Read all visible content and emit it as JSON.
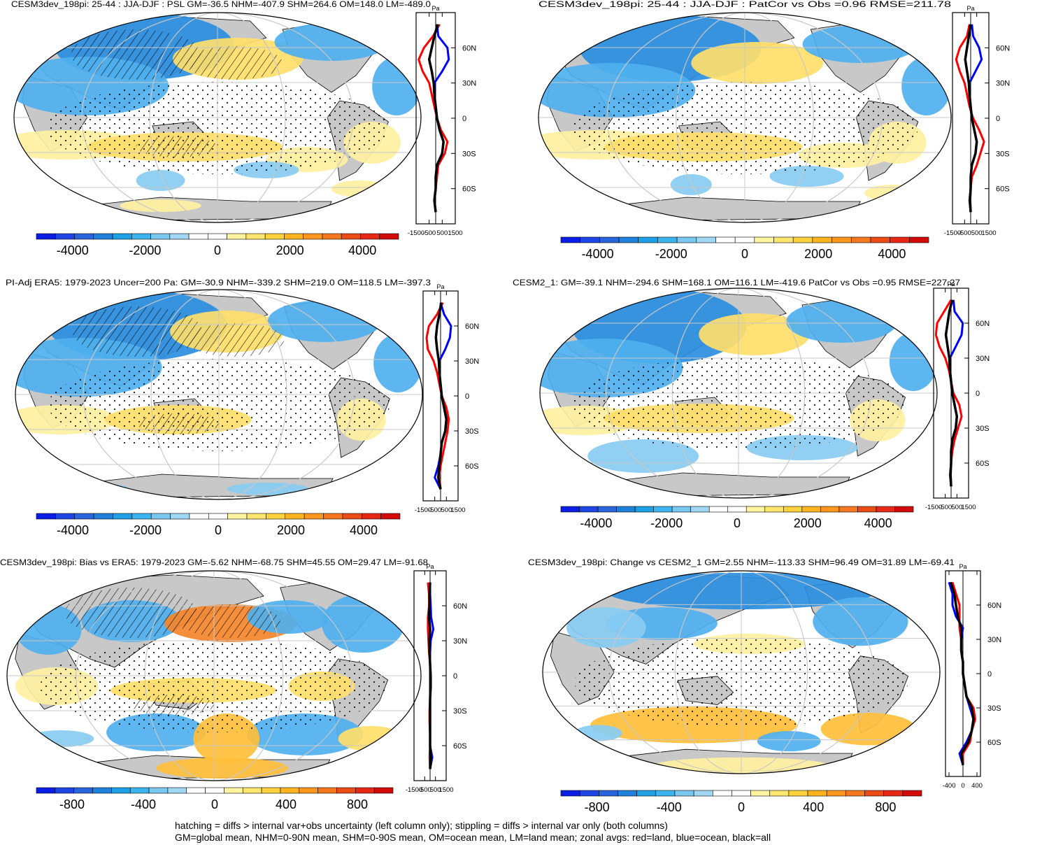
{
  "panels": [
    {
      "title": "CESM3dev_198pi: 25-44 : JJA-DJF : PSL GM=-36.5 NHM=-407.9 SHM=264.6 OM=148.0 LM=-489.0",
      "colorbar_ticks": [
        "-4000",
        "-2000",
        "0",
        "2000",
        "4000"
      ],
      "zonal_units": "Pa",
      "zonal_xticks": [
        "-1500",
        "-500",
        "500",
        "1500"
      ],
      "lat_ticks": [
        "60N",
        "30N",
        "0",
        "30S",
        "60S"
      ],
      "hatching": true
    },
    {
      "title": "CESM3dev_198pi: 25-44 : JJA-DJF : PatCor vs Obs =0.96 RMSE=211.78",
      "colorbar_ticks": [
        "-4000",
        "-2000",
        "0",
        "2000",
        "4000"
      ],
      "zonal_units": "Pa",
      "zonal_xticks": [
        "-1500",
        "-500",
        "500",
        "1500"
      ],
      "lat_ticks": [
        "60N",
        "30N",
        "0",
        "30S",
        "60S"
      ],
      "hatching": false
    },
    {
      "title": "PI-Adj ERA5: 1979-2023 Uncer=200 Pa: GM=-30.9 NHM=-339.2 SHM=219.0 OM=118.5 LM=-397.3",
      "colorbar_ticks": [
        "-4000",
        "-2000",
        "0",
        "2000",
        "4000"
      ],
      "zonal_units": "Pa",
      "zonal_xticks": [
        "-1500",
        "-500",
        "500",
        "1500"
      ],
      "lat_ticks": [
        "60N",
        "30N",
        "0",
        "30S",
        "60S"
      ],
      "hatching": true
    },
    {
      "title": "CESM2_1: GM=-39.1 NHM=-294.6 SHM=168.1 OM=116.1 LM=-419.6 PatCor vs Obs =0.95 RMSE=227.27",
      "colorbar_ticks": [
        "-4000",
        "-2000",
        "0",
        "2000",
        "4000"
      ],
      "zonal_units": "Pa",
      "zonal_xticks": [
        "-1500",
        "-500",
        "500",
        "1500"
      ],
      "lat_ticks": [
        "60N",
        "30N",
        "0",
        "30S",
        "60S"
      ],
      "hatching": false
    },
    {
      "title": "CESM3dev_198pi: Bias vs ERA5: 1979-2023 GM=-5.62 NHM=-68.75 SHM=45.55 OM=29.47 LM=-91.68",
      "colorbar_ticks": [
        "-800",
        "-400",
        "0",
        "400",
        "800"
      ],
      "zonal_units": "Pa",
      "zonal_xticks": [
        "-1500",
        "-500",
        "500",
        "1500"
      ],
      "lat_ticks": [
        "60N",
        "30N",
        "0",
        "30S",
        "60S"
      ],
      "hatching": true
    },
    {
      "title": "CESM3dev_198pi: Change vs CESM2_1 GM=2.55 NHM=-113.33 SHM=96.49 OM=31.89 LM=-69.41",
      "colorbar_ticks": [
        "-800",
        "-400",
        "0",
        "400",
        "800"
      ],
      "zonal_units": "Pa",
      "zonal_xticks": [
        "-400",
        "0",
        "400"
      ],
      "lat_ticks": [
        "60N",
        "30N",
        "0",
        "30S",
        "60S"
      ],
      "hatching": false
    }
  ],
  "footer": {
    "line1": "hatching = diffs > internal var+obs uncertainty (left column only); stippling = diffs > internal var only (both columns)",
    "line2": "GM=global mean, NHM=0-90N mean, SHM=0-90S mean, OM=ocean mean, LM=land mean; zonal avgs: red=land, blue=ocean, black=all"
  },
  "colors": {
    "ocean_white": "#ffffff",
    "land_gray": "#c8c8c8",
    "negative_palette": [
      "#0a1ee6",
      "#1e46e6",
      "#2864dc",
      "#1e82dc",
      "#1ea0e6",
      "#3cb4f0",
      "#78c8f0",
      "#a0d8f4"
    ],
    "positive_palette": [
      "#fff5a0",
      "#ffe66e",
      "#ffd23c",
      "#ffb41e",
      "#ff961e",
      "#f5781e",
      "#eb4b14",
      "#e62814",
      "#d20a0a"
    ],
    "zonal_land": "#ff0000",
    "zonal_ocean": "#0000ff",
    "zonal_all": "#000000"
  },
  "chart_data": [
    {
      "type": "heatmap",
      "title": "CESM3dev_198pi: 25-44 : JJA-DJF : PSL GM=-36.5 NHM=-407.9 SHM=264.6 OM=148.0 LM=-489.0",
      "colorbar_range": [
        -5000,
        5000
      ],
      "zonal_mean": {
        "lat": [
          80,
          70,
          60,
          50,
          40,
          30,
          20,
          10,
          0,
          -10,
          -20,
          -30,
          -40,
          -50,
          -60,
          -70,
          -80
        ],
        "land": [
          300,
          -200,
          -900,
          -1300,
          -1000,
          -500,
          -300,
          -100,
          100,
          400,
          900,
          700,
          200,
          100,
          0,
          -100,
          0
        ],
        "ocean": [
          100,
          200,
          900,
          1000,
          500,
          -100,
          -100,
          0,
          100,
          300,
          600,
          500,
          100,
          0,
          0,
          -100,
          0
        ],
        "all": [
          150,
          -100,
          -300,
          -500,
          -300,
          -150,
          -100,
          0,
          100,
          300,
          600,
          500,
          100,
          0,
          0,
          -100,
          0
        ],
        "xlim": [
          -1500,
          1500
        ]
      }
    },
    {
      "type": "heatmap",
      "title": "CESM3dev_198pi: 25-44 : JJA-DJF : PatCor vs Obs =0.96 RMSE=211.78",
      "colorbar_range": [
        -5000,
        5000
      ],
      "zonal_mean": {
        "lat": [
          80,
          70,
          60,
          50,
          40,
          30,
          20,
          10,
          0,
          -10,
          -20,
          -30,
          -40,
          -50,
          -60,
          -70,
          -80
        ],
        "land": [
          -100,
          -300,
          -900,
          -1200,
          -900,
          -500,
          -300,
          -100,
          200,
          700,
          1100,
          800,
          500,
          100,
          0,
          -100,
          0
        ],
        "ocean": [
          100,
          200,
          700,
          900,
          400,
          -100,
          -100,
          0,
          100,
          300,
          500,
          400,
          100,
          0,
          0,
          -100,
          0
        ],
        "all": [
          0,
          -150,
          -300,
          -450,
          -300,
          -150,
          -100,
          0,
          100,
          300,
          500,
          400,
          100,
          0,
          0,
          -50,
          0
        ],
        "xlim": [
          -1500,
          1500
        ]
      }
    },
    {
      "type": "heatmap",
      "title": "PI-Adj ERA5: 1979-2023 Uncer=200 Pa: GM=-30.9 NHM=-339.2 SHM=219.0 OM=118.5 LM=-397.3",
      "colorbar_range": [
        -5000,
        5000
      ],
      "zonal_mean": {
        "lat": [
          80,
          70,
          60,
          50,
          40,
          30,
          20,
          10,
          0,
          -10,
          -20,
          -30,
          -40,
          -50,
          -60,
          -70,
          -80
        ],
        "land": [
          200,
          -300,
          -1000,
          -1200,
          -1100,
          -600,
          -300,
          -100,
          100,
          500,
          700,
          600,
          400,
          200,
          0,
          -100,
          0
        ],
        "ocean": [
          0,
          300,
          900,
          800,
          400,
          -100,
          -100,
          0,
          100,
          300,
          500,
          400,
          100,
          0,
          -200,
          -500,
          0
        ],
        "all": [
          50,
          -100,
          -300,
          -400,
          -300,
          -150,
          -100,
          0,
          100,
          300,
          500,
          400,
          100,
          0,
          -100,
          -200,
          0
        ],
        "xlim": [
          -1500,
          1500
        ]
      }
    },
    {
      "type": "heatmap",
      "title": "CESM2_1: GM=-39.1 NHM=-294.6 SHM=168.1 OM=116.1 LM=-419.6 PatCor vs Obs =0.95 RMSE=227.27",
      "colorbar_range": [
        -5000,
        5000
      ],
      "zonal_mean": {
        "lat": [
          80,
          70,
          60,
          50,
          40,
          30,
          20,
          10,
          0,
          -10,
          -20,
          -30,
          -40,
          -50,
          -60,
          -70,
          -80
        ],
        "land": [
          0,
          -600,
          -1200,
          -1300,
          -1000,
          -500,
          -200,
          0,
          200,
          700,
          900,
          600,
          300,
          100,
          0,
          -100,
          0
        ],
        "ocean": [
          200,
          300,
          1000,
          900,
          400,
          -100,
          -100,
          0,
          100,
          300,
          500,
          400,
          100,
          0,
          0,
          -50,
          0
        ],
        "all": [
          100,
          -150,
          -300,
          -450,
          -300,
          -150,
          -100,
          0,
          100,
          300,
          500,
          400,
          100,
          0,
          0,
          -50,
          0
        ],
        "xlim": [
          -1500,
          1500
        ]
      }
    },
    {
      "type": "heatmap",
      "title": "CESM3dev_198pi: Bias vs ERA5: 1979-2023 GM=-5.62 NHM=-68.75 SHM=45.55 OM=29.47 LM=-91.68",
      "colorbar_range": [
        -1000,
        1000
      ],
      "zonal_mean": {
        "lat": [
          80,
          70,
          60,
          50,
          40,
          30,
          20,
          10,
          0,
          -10,
          -20,
          -30,
          -40,
          -50,
          -60,
          -70,
          -80
        ],
        "land": [
          -200,
          -100,
          -100,
          -200,
          -200,
          -150,
          -100,
          0,
          50,
          50,
          0,
          -50,
          -50,
          0,
          0,
          -50,
          0
        ],
        "ocean": [
          0,
          0,
          50,
          100,
          300,
          50,
          0,
          0,
          0,
          0,
          0,
          0,
          0,
          0,
          0,
          200,
          0
        ],
        "all": [
          0,
          -50,
          -50,
          -100,
          0,
          -50,
          -50,
          0,
          50,
          50,
          0,
          0,
          0,
          0,
          0,
          50,
          0
        ],
        "xlim": [
          -1500,
          1500
        ]
      }
    },
    {
      "type": "heatmap",
      "title": "CESM3dev_198pi: Change vs CESM2_1 GM=2.55 NHM=-113.33 SHM=96.49 OM=31.89 LM=-69.41",
      "colorbar_range": [
        -1000,
        1000
      ],
      "zonal_mean": {
        "lat": [
          80,
          70,
          60,
          50,
          40,
          30,
          20,
          10,
          0,
          -10,
          -20,
          -30,
          -40,
          -50,
          -60,
          -70,
          -80
        ],
        "land": [
          -300,
          -200,
          -100,
          -100,
          -100,
          -50,
          -50,
          0,
          0,
          50,
          100,
          300,
          350,
          250,
          200,
          0,
          0
        ],
        "ocean": [
          -400,
          -300,
          -300,
          -200,
          0,
          -50,
          -50,
          0,
          0,
          50,
          100,
          200,
          300,
          250,
          100,
          -100,
          0
        ],
        "all": [
          -350,
          -250,
          -200,
          -150,
          -50,
          -50,
          -50,
          0,
          0,
          50,
          100,
          250,
          300,
          250,
          150,
          -50,
          0
        ],
        "xlim": [
          -500,
          500
        ]
      }
    }
  ]
}
